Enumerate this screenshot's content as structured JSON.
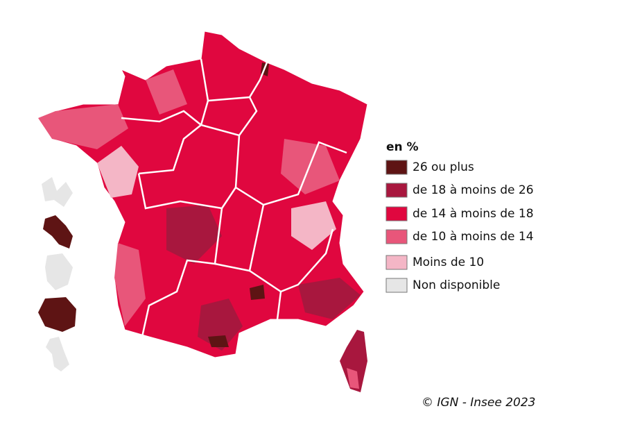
{
  "legend": {
    "title": "en %",
    "items": [
      {
        "label": "26 ou plus",
        "color": "#5e1414"
      },
      {
        "label": "de 18 à moins de 26",
        "color": "#a8173e"
      },
      {
        "label": "de 14 à moins de 18",
        "color": "#e0073f"
      },
      {
        "label": "de 10 à moins de 14",
        "color": "#e8567a"
      },
      {
        "label": "Moins de 10",
        "color": "#f4b6c6"
      },
      {
        "label": "Non disponible",
        "color": "#e6e6e6"
      }
    ]
  },
  "source": "© IGN - Insee 2023"
}
